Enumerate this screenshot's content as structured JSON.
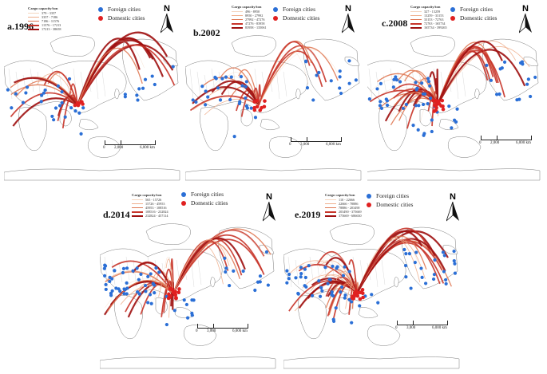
{
  "colors": {
    "foreign": "#2b6fd6",
    "domestic": "#e02020",
    "flow_classes": [
      "#f4d6c0",
      "#efb08e",
      "#e07a55",
      "#c8352a",
      "#9e1010"
    ],
    "land_stroke": "#7a7a7a"
  },
  "point_legend": {
    "foreign": "Foreign cities",
    "domestic": "Domestic cities"
  },
  "scale_unit": "km",
  "north_label": "N",
  "panels": [
    {
      "label": "a.1996",
      "legend_title": "Cargo capacity/ton",
      "classes": [
        "379 - 3357",
        "3357 - 7186",
        "7186 - 11576",
        "11576 - 17213",
        "17213 - 38658"
      ],
      "scale_mid": "2,000",
      "scale_end": "6,000 km"
    },
    {
      "label": "b.2002",
      "legend_title": "Cargo capacity/ton",
      "classes": [
        "496 - 8950",
        "8950 - 27992",
        "27992 - 47276",
        "47276 - 83958",
        "83958 - 135061"
      ],
      "scale_mid": "3,000",
      "scale_end": "6,000 km"
    },
    {
      "label": "c.2008",
      "legend_title": "Cargo capacity/ton",
      "classes": [
        "327 - 13259",
        "13259 - 33153",
        "33153 - 72763",
        "72763 - 165734",
        "165734 - 399265"
      ],
      "scale_mid": "2,000",
      "scale_end": "6,000 km"
    },
    {
      "label": "d.2014",
      "legend_title": "Cargo capacity/ton",
      "classes": [
        "565 - 15726",
        "15726 - 45953",
        "45953 - 108516",
        "108516 - 232824",
        "232824 - 457114"
      ],
      "scale_mid": "3,000",
      "scale_end": "6,000 km"
    },
    {
      "label": "e.2019",
      "legend_title": "Cargo capacity/ton",
      "classes": [
        "110 - 22666",
        "22666 - 78886",
        "78886 - 203490",
        "203490 - 375669",
        "375669 - 686630"
      ],
      "scale_mid": "3,000",
      "scale_end": "6,000 km"
    }
  ]
}
